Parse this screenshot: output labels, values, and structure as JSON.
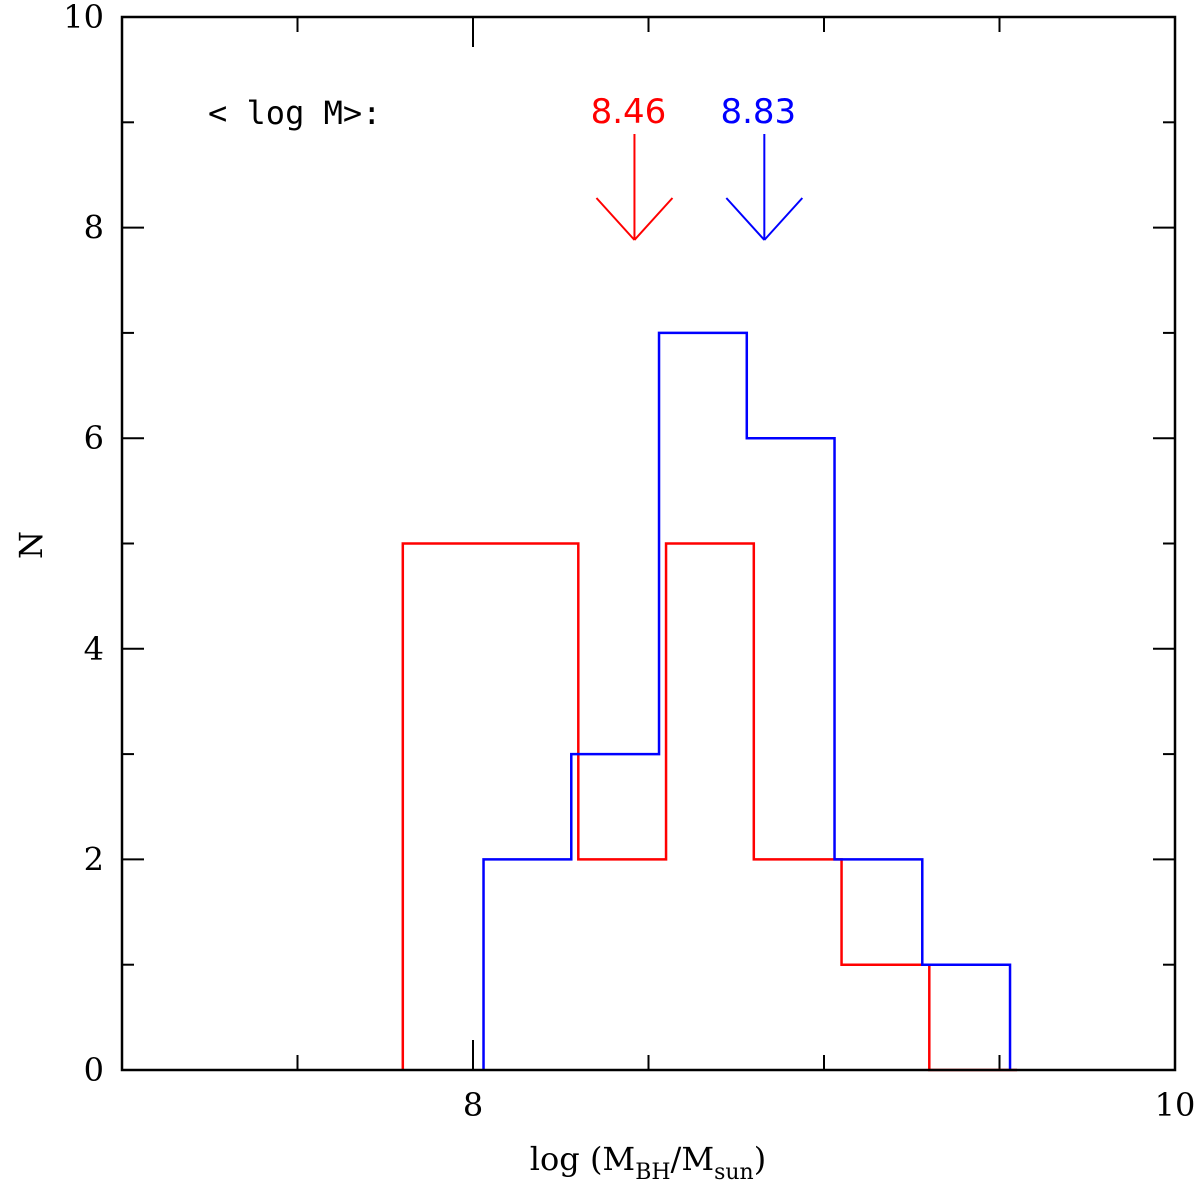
{
  "chart_data": {
    "type": "histogram",
    "title": "",
    "xlabel": {
      "prefix": "log (M",
      "sub1": "BH",
      "mid": "/M",
      "sub2": "sun",
      "suffix": ")"
    },
    "ylabel": "N",
    "xlim": [
      7.0,
      10.0
    ],
    "ylim": [
      0,
      10
    ],
    "x_ticks": [
      8,
      10
    ],
    "x_tick_labels": [
      "8",
      "10"
    ],
    "y_ticks": [
      0,
      2,
      4,
      6,
      8,
      10
    ],
    "y_tick_labels": [
      "0",
      "2",
      "4",
      "6",
      "8",
      "10"
    ],
    "annotation_label": "< log M>:",
    "series": [
      {
        "color": "#ff0000",
        "mean": 8.46,
        "mean_label": "8.46",
        "bin_edges": [
          7.8,
          8.3,
          8.55,
          8.8,
          9.05,
          9.3,
          9.55
        ],
        "counts": [
          5,
          2,
          5,
          2,
          1,
          0
        ]
      },
      {
        "color": "#0000ff",
        "mean": 8.83,
        "mean_label": "8.83",
        "bin_edges": [
          8.03,
          8.28,
          8.53,
          8.78,
          9.03,
          9.28,
          9.53
        ],
        "counts": [
          2,
          3,
          7,
          6,
          2,
          1
        ]
      }
    ],
    "grid": false,
    "legend": "none"
  }
}
